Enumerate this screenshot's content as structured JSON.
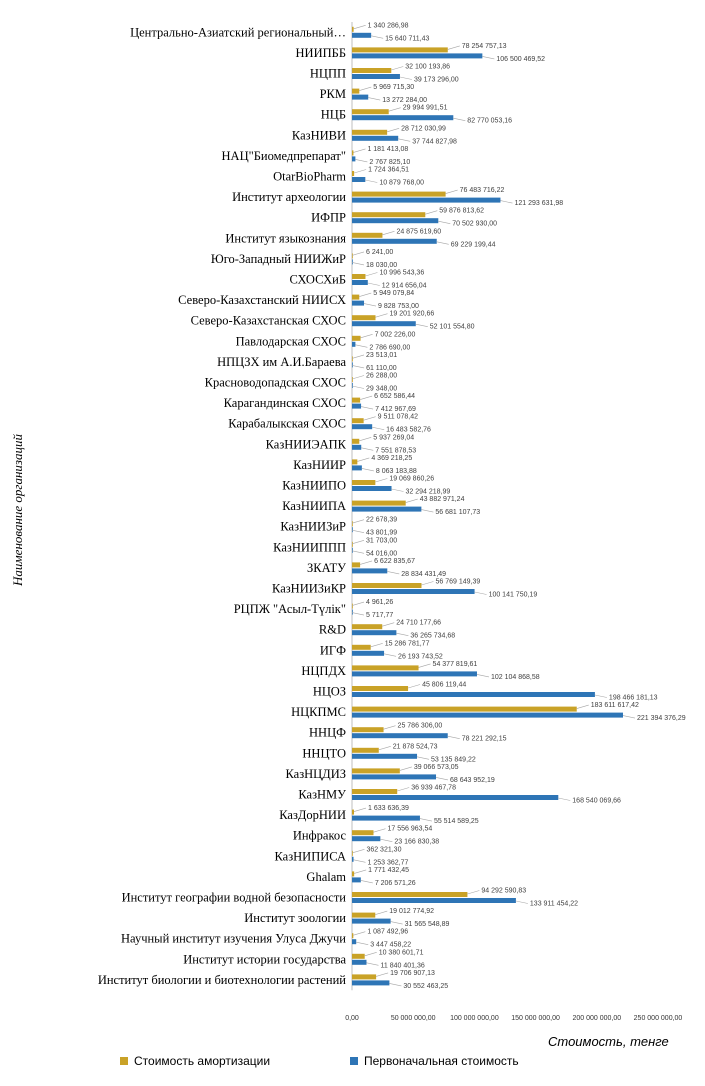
{
  "chart_data": {
    "type": "bar",
    "orientation": "horizontal",
    "xlabel": "Стоимость, тенге",
    "ylabel": "Наименование организаций",
    "xlim": [
      0,
      250000000
    ],
    "x_ticks": [
      "0,00",
      "50 000 000,00",
      "100 000 000,00",
      "150 000 000,00",
      "200 000 000,00",
      "250 000 000,00"
    ],
    "x_tick_values": [
      0,
      50000000,
      100000000,
      150000000,
      200000000,
      250000000
    ],
    "grid": false,
    "legend_position": "bottom",
    "categories": [
      "Центрально-Азиатский региональный…",
      "НИИПББ",
      "НЦПП",
      "РКМ",
      "НЦБ",
      "КазНИВИ",
      "НАЦ\"Биомедпрепарат\"",
      "OtarBioPharm",
      "Институт археологии",
      "ИФПР",
      "Институт языкознания",
      "Юго-Западный НИИЖиР",
      "СХОСХиБ",
      "Северо-Казахстанский НИИСХ",
      "Северо-Казахстанская СХОС",
      "Павлодарская СХОС",
      "НПЦЗХ им А.И.Бараева",
      "Красноводопадская СХОС",
      "Карагандинская СХОС",
      "Карабалыкская СХОС",
      "КазНИИЭАПК",
      "КазНИИР",
      "КазНИИПО",
      "КазНИИПА",
      "КазНИИЗиР",
      "КазНИИППП",
      "ЗКАТУ",
      "КазНИИЗиКР",
      "РЦПЖ \"Асыл-Түлік\"",
      "R&D",
      "ИГФ",
      "НЦПДХ",
      "НЦОЗ",
      "НЦКПМС",
      "ННЦФ",
      "ННЦТО",
      "КазНЦДИЗ",
      "КазНМУ",
      "КазДорНИИ",
      "Инфракос",
      "КазНИПИСА",
      "Ghalam",
      "Институт географии водной безопасности",
      "Институт зоологии",
      "Научный институт изучения Улуса Джучи",
      "Институт истории государства",
      "Институт биологии и биотехнологии растений"
    ],
    "series": [
      {
        "name": "Стоимость амортизации",
        "color": "#C9A227",
        "values": [
          1340286.98,
          78254757.13,
          32100193.86,
          5969715.3,
          29994991.51,
          28712030.99,
          1181413.08,
          1724364.51,
          76483716.22,
          59876813.62,
          24875619.6,
          6241,
          10996543.36,
          5949079.84,
          19201920.66,
          7002226,
          23513.01,
          26288,
          6652586.44,
          9511078.42,
          5937269.04,
          4369218.25,
          19069860.26,
          43882971.24,
          22678.39,
          31703,
          6622835.67,
          56769149.39,
          4961.26,
          24710177.66,
          15286781.77,
          54377819.61,
          45806119.44,
          183611617.42,
          25786306,
          21878524.73,
          39066573.05,
          36939467.78,
          1633636.39,
          17556963.54,
          362321.3,
          1771432.45,
          94292590.83,
          19012774.92,
          1087492.96,
          10380601.71,
          19706907.13
        ]
      },
      {
        "name": "Первоначальная стоимость",
        "color": "#2E75B6",
        "values": [
          15640711.43,
          106500469.52,
          39173296,
          13272284,
          82770053.16,
          37744827.98,
          2767825.1,
          10879768,
          121293631.98,
          70502930,
          69229199.44,
          18030,
          12914656.04,
          9828753,
          52101554.8,
          2786690,
          61110,
          29348,
          7412967.69,
          16483582.76,
          7551878.53,
          8063183.88,
          32294218.99,
          56681107.73,
          43801.99,
          54016,
          28834431.49,
          100141750.19,
          5717.77,
          36265734.68,
          26193743.52,
          102104868.58,
          198466181.13,
          221394376.29,
          78221292.15,
          53135849.22,
          68643952.19,
          168540069.66,
          55514589.25,
          23166830.38,
          1253362.77,
          7206571.26,
          133911454.22,
          31565548.89,
          3447458.22,
          11840401.36,
          30552463.25
        ]
      }
    ],
    "labels_amort": [
      "1 340 286,98",
      "78 254 757,13",
      "32 100 193,86",
      "5 969 715,30",
      "29 994 991,51",
      "28 712 030,99",
      "1 181 413,08",
      "1 724 364,51",
      "76 483 716,22",
      "59 876 813,62",
      "24 875 619,60",
      "6 241,00",
      "10 996 543,36",
      "5 949 079,84",
      "19 201 920,66",
      "7 002 226,00",
      "23 513,01",
      "26 288,00",
      "6 652 586,44",
      "9 511 078,42",
      "5 937 269,04",
      "4 369 218,25",
      "19 069 860,26",
      "43 882 971,24",
      "22 678,39",
      "31 703,00",
      "6 622 835,67",
      "56 769 149,39",
      "4 961,26",
      "24 710 177,66",
      "15 286 781,77",
      "54 377 819,61",
      "45 806 119,44",
      "183 611 617,42",
      "25 786 306,00",
      "21 878 524,73",
      "39 066 573,05",
      "36 939 467,78",
      "1 633 636,39",
      "17 556 963,54",
      "362 321,30",
      "1 771 432,45",
      "94 292 590,83",
      "19 012 774,92",
      "1 087 492,96",
      "10 380 601,71",
      "19 706 907,13"
    ],
    "labels_initial": [
      "15 640 711,43",
      "106 500 469,52",
      "39 173 296,00",
      "13 272 284,00",
      "82 770 053,16",
      "37 744 827,98",
      "2 767 825,10",
      "10 879 768,00",
      "121 293 631,98",
      "70 502 930,00",
      "69 229 199,44",
      "18 030,00",
      "12 914 656,04",
      "9 828 753,00",
      "52 101 554,80",
      "2 786 690,00",
      "61 110,00",
      "29 348,00",
      "7 412 967,69",
      "16 483 582,76",
      "7 551 878,53",
      "8 063 183,88",
      "32 294 218,99",
      "56 681 107,73",
      "43 801,99",
      "54 016,00",
      "28 834 431,49",
      "100 141 750,19",
      "5 717,77",
      "36 265 734,68",
      "26 193 743,52",
      "102 104 868,58",
      "198 466 181,13",
      "221 394 376,29",
      "78 221 292,15",
      "53 135 849,22",
      "68 643 952,19",
      "168 540 069,66",
      "55 514 589,25",
      "23 166 830,38",
      "1 253 362,77",
      "7 206 571,26",
      "133 911 454,22",
      "31 565 548,89",
      "3 447 458,22",
      "11 840 401,36",
      "30 552 463,25"
    ]
  }
}
